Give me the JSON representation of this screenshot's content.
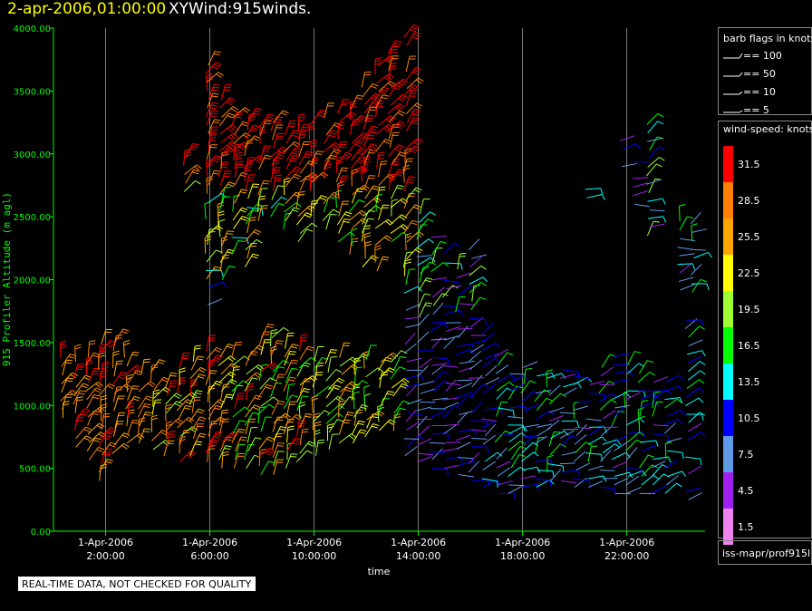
{
  "header": {
    "timestamp": "2-apr-2006,01:00:00",
    "title": "XYWind:915winds."
  },
  "notice": "REAL-TIME DATA, NOT CHECKED FOR QUALITY",
  "legend": {
    "barb_title": "barb flags in knots",
    "barb_flags": [
      {
        "label": "== 100"
      },
      {
        "label": "== 50"
      },
      {
        "label": "== 10"
      },
      {
        "label": "== 5"
      }
    ],
    "speed_title": "wind-speed: knots",
    "speed_bins": [
      {
        "label": "31.5",
        "color": "#ff0000"
      },
      {
        "label": "28.5",
        "color": "#ff8000"
      },
      {
        "label": "25.5",
        "color": "#ffa500"
      },
      {
        "label": "22.5",
        "color": "#ffff00"
      },
      {
        "label": "19.5",
        "color": "#a0ff30"
      },
      {
        "label": "16.5",
        "color": "#00ff00"
      },
      {
        "label": "13.5",
        "color": "#00ffff"
      },
      {
        "label": "10.5",
        "color": "#0000ff"
      },
      {
        "label": "7.5",
        "color": "#5f9ae8"
      },
      {
        "label": "4.5",
        "color": "#a020f0"
      },
      {
        "label": "1.5",
        "color": "#ee82ee"
      }
    ],
    "source_label": "iss-mapr/prof915l"
  },
  "colors": {
    "axis": "#00ff00",
    "grid": "#b0b0b0",
    "tick_text": "#ffffff"
  },
  "chart_data": {
    "type": "scatter",
    "title": "XYWind:915winds.",
    "xlabel": "time",
    "ylabel": "915 Profiler Altitude (m agl)",
    "ylim": [
      0,
      4000
    ],
    "xlim_hours": [
      0.0,
      25.0
    ],
    "grid": "vertical",
    "y_ticks": [
      "0.00",
      "500.00",
      "1000.00",
      "1500.00",
      "2000.00",
      "2500.00",
      "3000.00",
      "3500.00",
      "4000.00"
    ],
    "x_ticks": [
      {
        "hour": 2,
        "date": "1-Apr-2006",
        "time": "2:00:00"
      },
      {
        "hour": 6,
        "date": "1-Apr-2006",
        "time": "6:00:00"
      },
      {
        "hour": 10,
        "date": "1-Apr-2006",
        "time": "10:00:00"
      },
      {
        "hour": 14,
        "date": "1-Apr-2006",
        "time": "14:00:00"
      },
      {
        "hour": 18,
        "date": "1-Apr-2006",
        "time": "18:00:00"
      },
      {
        "hour": 22,
        "date": "1-Apr-2006",
        "time": "22:00:00"
      }
    ],
    "profiles": [
      {
        "hour": 0.3,
        "lo": 900,
        "hi": 1400
      },
      {
        "hour": 0.8,
        "lo": 600,
        "hi": 1400
      },
      {
        "hour": 1.3,
        "lo": 500,
        "hi": 1400
      },
      {
        "hour": 1.8,
        "lo": 400,
        "hi": 1500
      },
      {
        "hour": 2.3,
        "lo": 550,
        "hi": 1550
      },
      {
        "hour": 2.8,
        "lo": 700,
        "hi": 1400
      },
      {
        "hour": 3.3,
        "lo": 700,
        "hi": 1300
      },
      {
        "hour": 3.8,
        "lo": 650,
        "hi": 1300
      },
      {
        "hour": 4.3,
        "lo": 600,
        "hi": 1250
      },
      {
        "hour": 4.8,
        "lo": 550,
        "hi": 1300
      },
      {
        "hour": 5.3,
        "lo": 600,
        "hi": 1350
      },
      {
        "hour": 5.9,
        "lo": 550,
        "hi": 1500
      },
      {
        "hour": 6.4,
        "lo": 500,
        "hi": 1450
      },
      {
        "hour": 6.9,
        "lo": 500,
        "hi": 1400
      },
      {
        "hour": 7.4,
        "lo": 500,
        "hi": 1450
      },
      {
        "hour": 7.9,
        "lo": 450,
        "hi": 1550
      },
      {
        "hour": 8.4,
        "lo": 450,
        "hi": 1550
      },
      {
        "hour": 8.9,
        "lo": 500,
        "hi": 1500
      },
      {
        "hour": 9.4,
        "lo": 550,
        "hi": 1450
      },
      {
        "hour": 10.0,
        "lo": 600,
        "hi": 1350
      },
      {
        "hour": 10.5,
        "lo": 650,
        "hi": 1350
      },
      {
        "hour": 11.0,
        "lo": 700,
        "hi": 1400
      },
      {
        "hour": 11.5,
        "lo": 700,
        "hi": 1350
      },
      {
        "hour": 12.0,
        "lo": 750,
        "hi": 1400
      },
      {
        "hour": 12.5,
        "lo": 800,
        "hi": 1350
      },
      {
        "hour": 13.0,
        "lo": 800,
        "hi": 1400
      },
      {
        "hour": 13.5,
        "lo": 600,
        "hi": 2400
      },
      {
        "hour": 14.0,
        "lo": 550,
        "hi": 2550
      },
      {
        "hour": 14.5,
        "lo": 500,
        "hi": 2400
      },
      {
        "hour": 15.0,
        "lo": 500,
        "hi": 2200
      },
      {
        "hour": 15.5,
        "lo": 450,
        "hi": 2100
      },
      {
        "hour": 16.0,
        "lo": 400,
        "hi": 2300
      },
      {
        "hour": 16.5,
        "lo": 350,
        "hi": 1700
      },
      {
        "hour": 17.0,
        "lo": 300,
        "hi": 1500
      },
      {
        "hour": 17.5,
        "lo": 300,
        "hi": 1450
      },
      {
        "hour": 18.0,
        "lo": 350,
        "hi": 1350
      },
      {
        "hour": 18.5,
        "lo": 350,
        "hi": 1300
      },
      {
        "hour": 19.0,
        "lo": 400,
        "hi": 1250
      },
      {
        "hour": 19.5,
        "lo": 400,
        "hi": 1300
      },
      {
        "hour": 20.0,
        "lo": 350,
        "hi": 1250
      },
      {
        "hour": 20.5,
        "lo": 350,
        "hi": 1200
      },
      {
        "hour": 21.0,
        "lo": 350,
        "hi": 1350
      },
      {
        "hour": 21.5,
        "lo": 300,
        "hi": 1400
      },
      {
        "hour": 22.0,
        "lo": 300,
        "hi": 1400
      },
      {
        "hour": 22.5,
        "lo": 300,
        "hi": 1300
      },
      {
        "hour": 23.0,
        "lo": 300,
        "hi": 1250
      },
      {
        "hour": 23.5,
        "lo": 300,
        "hi": 1200
      },
      {
        "hour": 24.3,
        "lo": 250,
        "hi": 1700
      }
    ],
    "upper_profiles": [
      {
        "hour": 5.0,
        "lo": 2700,
        "hi": 3000
      },
      {
        "hour": 5.9,
        "lo": 1800,
        "hi": 3750
      },
      {
        "hour": 6.4,
        "lo": 2000,
        "hi": 3450
      },
      {
        "hour": 6.9,
        "lo": 2200,
        "hi": 3300
      },
      {
        "hour": 7.4,
        "lo": 2100,
        "hi": 3300
      },
      {
        "hour": 7.9,
        "lo": 2400,
        "hi": 3250
      },
      {
        "hour": 8.4,
        "lo": 2500,
        "hi": 3250
      },
      {
        "hour": 8.9,
        "lo": 2400,
        "hi": 3200
      },
      {
        "hour": 9.4,
        "lo": 2300,
        "hi": 3250
      },
      {
        "hour": 9.9,
        "lo": 2500,
        "hi": 3250
      },
      {
        "hour": 10.4,
        "lo": 2400,
        "hi": 3300
      },
      {
        "hour": 10.9,
        "lo": 2300,
        "hi": 3350
      },
      {
        "hour": 11.4,
        "lo": 2200,
        "hi": 3400
      },
      {
        "hour": 11.9,
        "lo": 2100,
        "hi": 3550
      },
      {
        "hour": 12.4,
        "lo": 2000,
        "hi": 3700
      },
      {
        "hour": 12.9,
        "lo": 2300,
        "hi": 3800
      },
      {
        "hour": 13.5,
        "lo": 2500,
        "hi": 3950
      },
      {
        "hour": 20.4,
        "lo": 2650,
        "hi": 2720
      },
      {
        "hour": 21.8,
        "lo": 2900,
        "hi": 3150
      },
      {
        "hour": 22.3,
        "lo": 2600,
        "hi": 2950
      },
      {
        "hour": 22.8,
        "lo": 2350,
        "hi": 3250
      },
      {
        "hour": 24.0,
        "lo": 1850,
        "hi": 2500
      },
      {
        "hour": 24.5,
        "lo": 1900,
        "hi": 2500
      }
    ]
  }
}
